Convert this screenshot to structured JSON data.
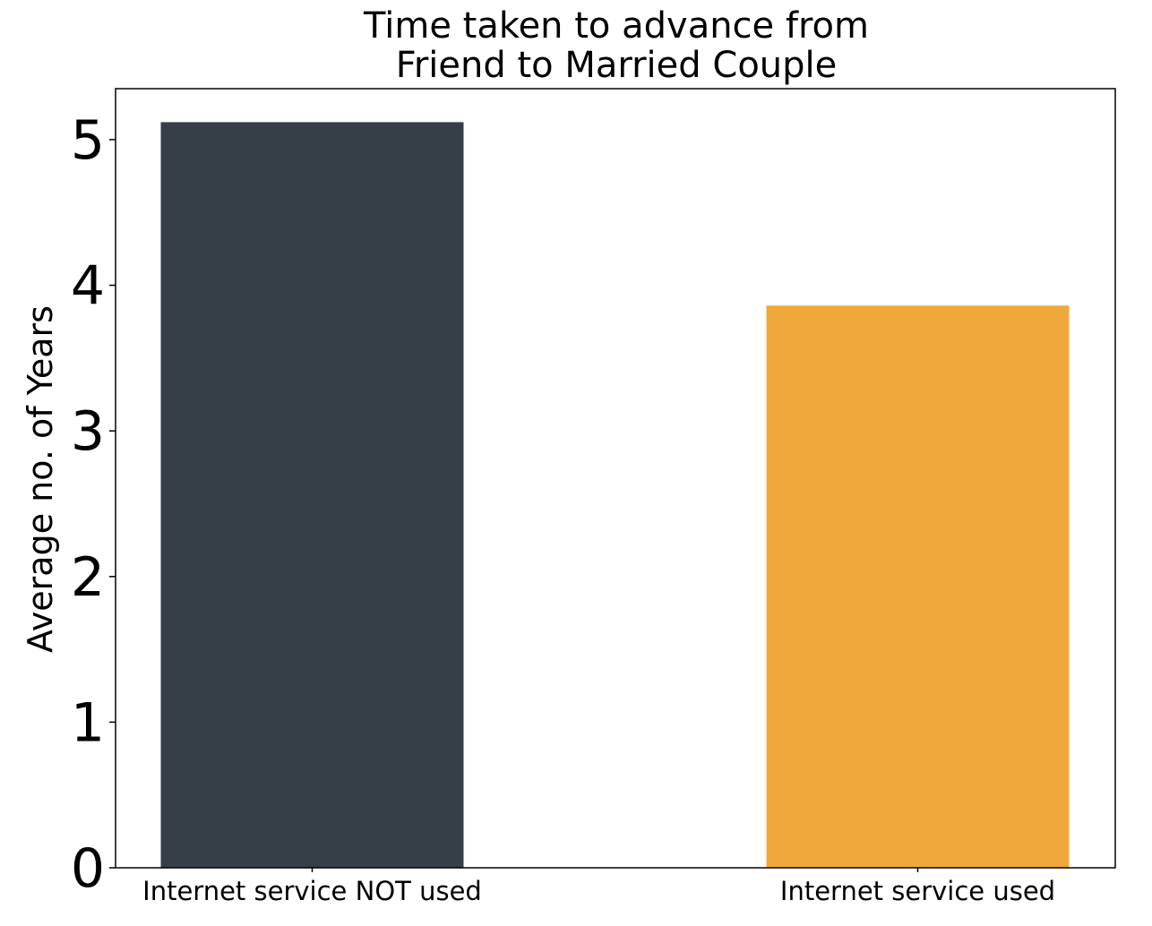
{
  "chart_data": {
    "type": "bar",
    "title_lines": [
      "Time taken to advance from",
      "Friend to Married Couple"
    ],
    "xlabel": "",
    "ylabel": "Average no. of Years",
    "categories": [
      "Internet service NOT used",
      "Internet service used"
    ],
    "values": [
      5.12,
      3.86
    ],
    "colors": [
      "#363e48",
      "#f0a73c"
    ],
    "ylim": [
      0,
      5.35
    ],
    "yticks": [
      0,
      1,
      2,
      3,
      4,
      5
    ],
    "grid": false,
    "legend": "none"
  }
}
